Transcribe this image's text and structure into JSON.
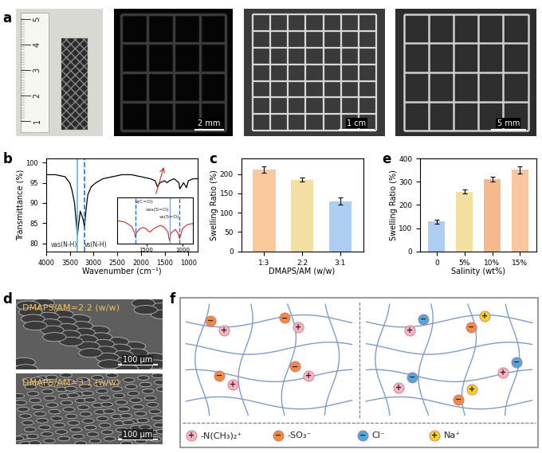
{
  "panel_labels": [
    "a",
    "b",
    "c",
    "d",
    "e",
    "f"
  ],
  "panel_a": {
    "ruler_labels": [
      "1",
      "2",
      "3",
      "4",
      "5"
    ],
    "scale_bars": [
      "2 mm",
      "1 cm",
      "5 mm"
    ]
  },
  "chart_data": [
    {
      "type": "line",
      "xlabel": "Wavenumber (cm⁻¹)",
      "ylabel": "Transmittance (%)",
      "x": [
        4000,
        3800,
        3600,
        3500,
        3450,
        3400,
        3370,
        3340,
        3310,
        3280,
        3250,
        3220,
        3190,
        3160,
        3120,
        3050,
        2950,
        2800,
        2600,
        2400,
        2200,
        2000,
        1800,
        1700,
        1650,
        1600,
        1500,
        1450,
        1400,
        1300,
        1200,
        1180,
        1100,
        1040,
        1000,
        900,
        800
      ],
      "values": [
        97,
        97,
        96.5,
        95,
        93,
        90,
        86,
        82,
        85,
        88,
        87,
        86,
        84,
        88,
        92,
        94,
        95,
        96,
        96.5,
        97,
        97,
        96.5,
        96,
        95.5,
        94,
        95,
        95.5,
        95,
        95.5,
        96,
        95,
        93.5,
        95,
        93.8,
        95.5,
        96,
        96
      ],
      "color": "#000000",
      "xlim": [
        4000,
        800
      ],
      "xticks": [
        4000,
        3500,
        3000,
        2500,
        2000,
        1500,
        1000
      ],
      "ylim": [
        78,
        101
      ],
      "yticks": [
        80,
        85,
        90,
        95,
        100
      ],
      "annotations": [
        {
          "text": "νas(N-H)",
          "x": 3340,
          "color": "#5bb5e8",
          "line_style": "solid"
        },
        {
          "text": "νs(N-H)",
          "x": 3190,
          "color": "#2f6fd6",
          "line_style": "dashed"
        }
      ]
    },
    {
      "type": "line",
      "tick_labels": "x",
      "x": [
        1900,
        1800,
        1750,
        1700,
        1660,
        1650,
        1640,
        1600,
        1550,
        1500,
        1480,
        1450,
        1400,
        1350,
        1300,
        1250,
        1200,
        1180,
        1160,
        1100,
        1060,
        1040,
        1020,
        1000,
        950,
        900,
        850
      ],
      "values": [
        96.5,
        96.3,
        96.0,
        95.6,
        94.6,
        94.0,
        94.6,
        95.2,
        95.5,
        95.3,
        95.0,
        94.8,
        95.3,
        95.6,
        95.8,
        95.5,
        94.8,
        93.5,
        94.6,
        95.2,
        94.6,
        93.8,
        94.5,
        95.3,
        95.8,
        96.0,
        96.1
      ],
      "color": "#d62728",
      "xlim": [
        1900,
        850
      ],
      "xticks": [
        1500,
        1000
      ],
      "ylim": [
        93,
        100
      ],
      "annotations": [
        {
          "text": "ν(C=O)",
          "x": 1650,
          "color": "#2f6fd6",
          "line_style": "dashed"
        },
        {
          "text": "νas(S=O)",
          "x": 1180,
          "color": "#5bb5e8",
          "line_style": "solid"
        },
        {
          "text": "νs(S=O)",
          "x": 1040,
          "color": "#2f6fd6",
          "line_style": "dashed"
        }
      ]
    },
    {
      "type": "bar",
      "xlabel": "DMAPS/AM (w/w)",
      "ylabel": "Swelling Ratio (%)",
      "categories": [
        "1:3",
        "2:2",
        "3:1"
      ],
      "values": [
        212,
        185,
        130
      ],
      "errors": [
        8,
        5,
        10
      ],
      "colors": [
        "#f9c89b",
        "#f3dfa2",
        "#aecdf2"
      ],
      "ylim": [
        0,
        240
      ],
      "yticks": [
        0,
        50,
        100,
        150,
        200
      ]
    },
    {
      "type": "bar",
      "xlabel": "Salinity (wt%)",
      "ylabel": "Swelling Ratio (%)",
      "categories": [
        "0",
        "5%",
        "10%",
        "15%"
      ],
      "values": [
        128,
        258,
        312,
        352
      ],
      "errors": [
        10,
        8,
        10,
        15
      ],
      "colors": [
        "#aecdf2",
        "#f3dfa2",
        "#f6b98d",
        "#f8c7a0"
      ],
      "ylim": [
        0,
        400
      ],
      "yticks": [
        0,
        100,
        200,
        300,
        400
      ]
    }
  ],
  "panel_d": {
    "images": [
      {
        "label": "DMAPS/AM=2:2 (w/w)",
        "scale_bar": "100 μm"
      },
      {
        "label": "DMAPS/AM=3:1 (w/w)",
        "scale_bar": "100 μm"
      }
    ]
  },
  "panel_f": {
    "legend": [
      {
        "symbol": "+",
        "label": "-N(CH₃)₂⁺",
        "color": "#f6b3c3"
      },
      {
        "symbol": "−",
        "label": "-SO₃⁻",
        "color": "#f08a4b"
      },
      {
        "symbol": "−",
        "label": "Cl⁻",
        "color": "#4fa7dc"
      },
      {
        "symbol": "+",
        "label": "Na⁺",
        "color": "#f2d12e"
      }
    ]
  }
}
